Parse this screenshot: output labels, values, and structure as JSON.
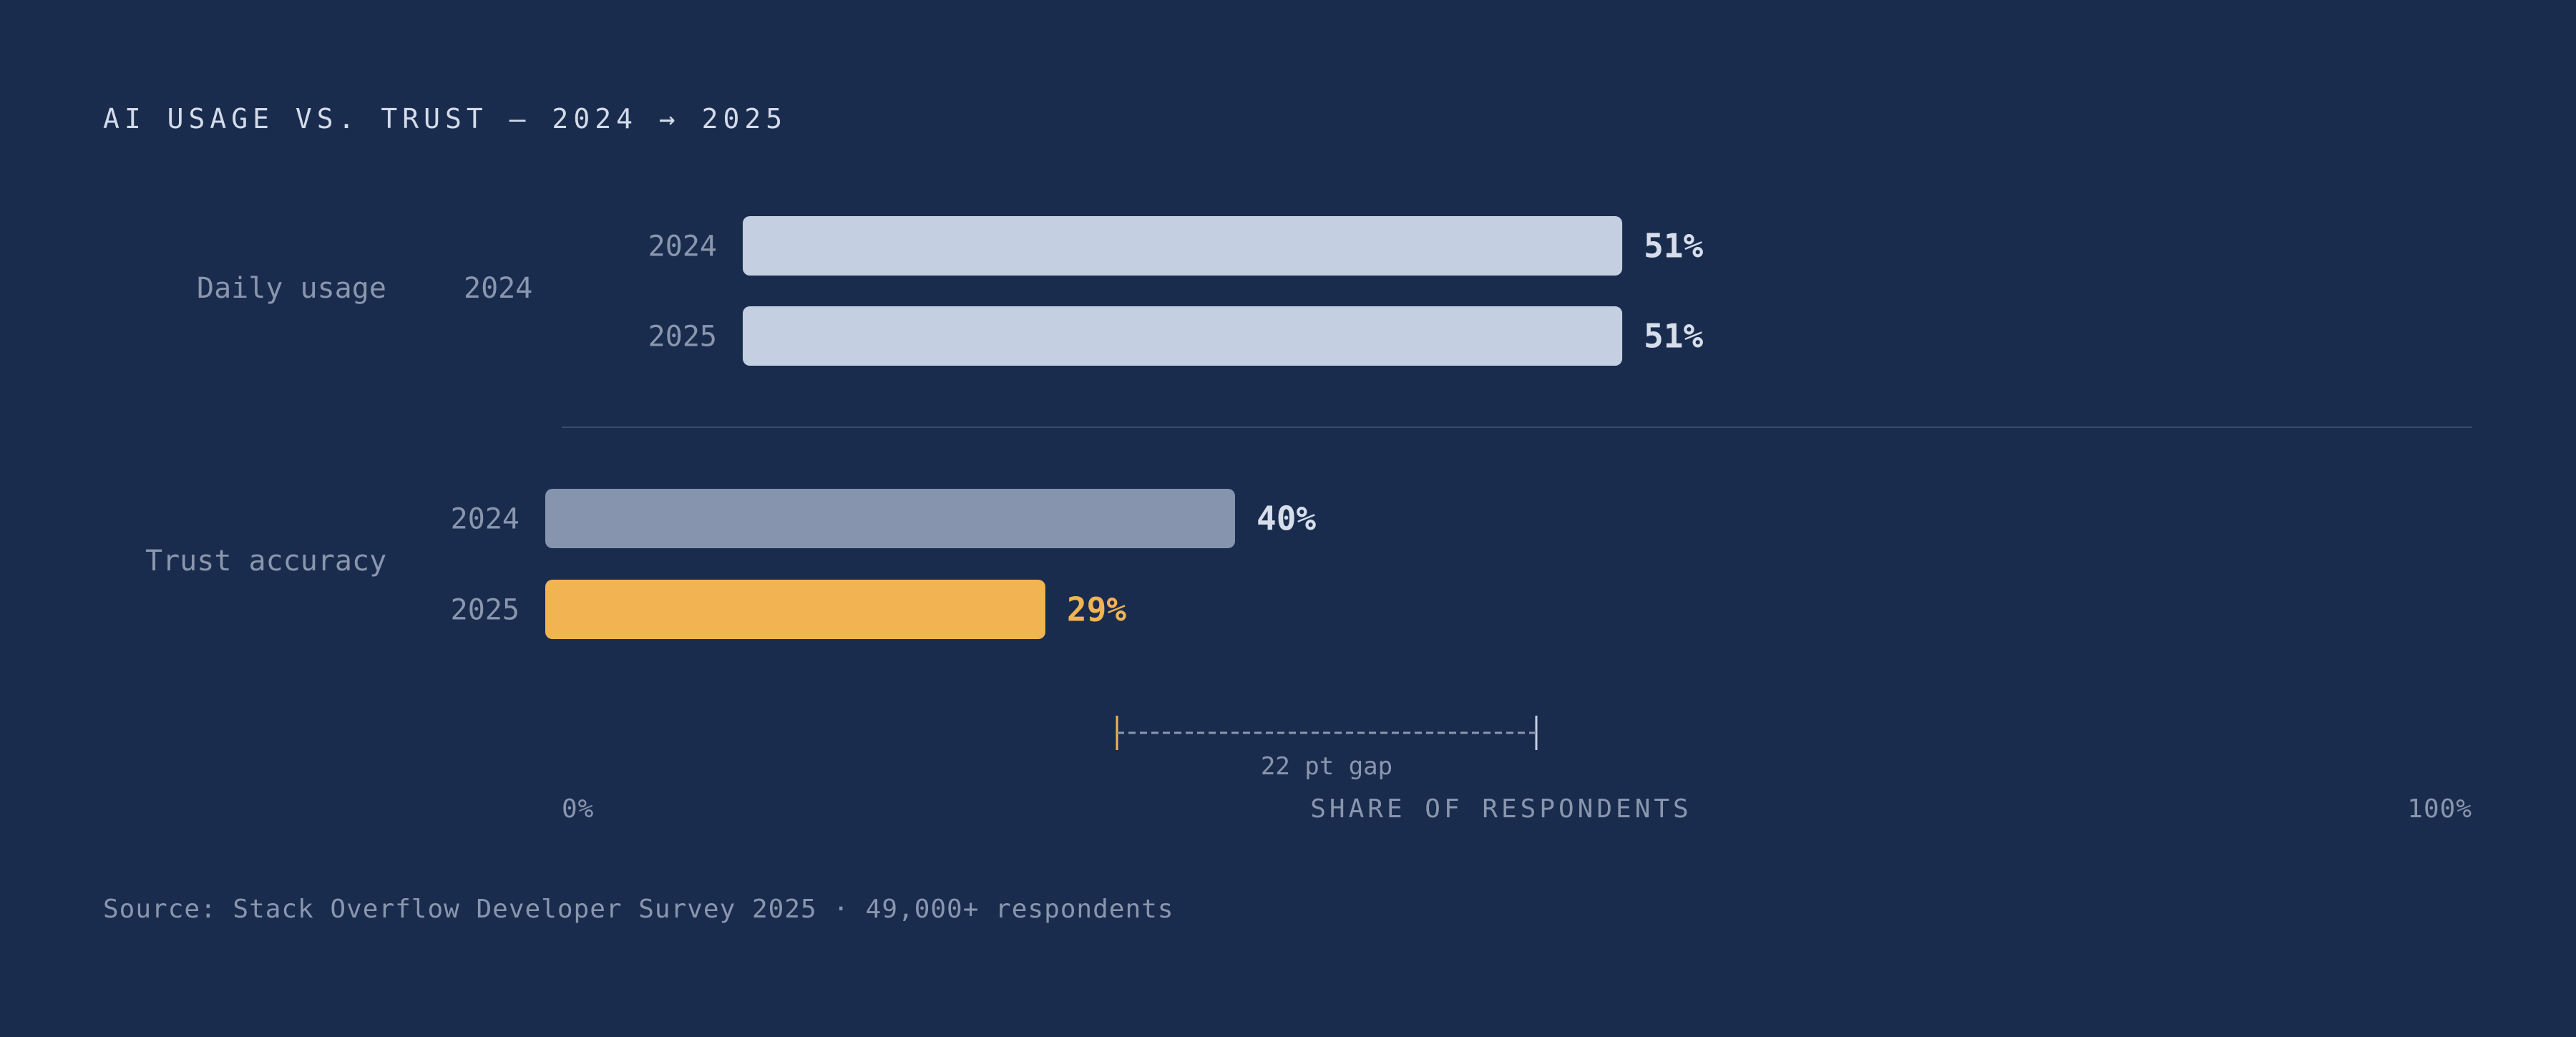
{
  "title": "AI USAGE VS. TRUST — 2024 → 2025",
  "source": "Source: Stack Overflow Developer Survey 2025 · 49,000+ respondents",
  "groups": [
    {
      "label": "Daily usage",
      "year_tag": "2024"
    },
    {
      "label": "Trust accuracy"
    }
  ],
  "annotation": {
    "gap_label": "22 pt gap"
  },
  "colors": {
    "background": "#1a2c4e",
    "usage_bar": "#c4cfe2",
    "trust_2024_bar": "#8794ad",
    "trust_2025_bar": "#f2b452",
    "muted_text": "#8a96ad",
    "value_text": "#d6deeb",
    "highlight_text": "#f2b452"
  },
  "chart_data": {
    "type": "bar",
    "orientation": "horizontal",
    "title": "AI USAGE VS. TRUST — 2024 → 2025",
    "xlabel": "SHARE OF RESPONDENTS",
    "xlim": [
      0,
      100
    ],
    "x_tick_labels": [
      "0%",
      "100%"
    ],
    "grid": false,
    "bars": [
      {
        "group": "Daily usage",
        "category": "2024",
        "value": 51,
        "label": "51%"
      },
      {
        "group": "Daily usage",
        "category": "2025",
        "value": 51,
        "label": "51%"
      },
      {
        "group": "Trust accuracy",
        "category": "2024",
        "value": 40,
        "label": "40%"
      },
      {
        "group": "Trust accuracy",
        "category": "2025",
        "value": 29,
        "label": "29%"
      }
    ]
  }
}
